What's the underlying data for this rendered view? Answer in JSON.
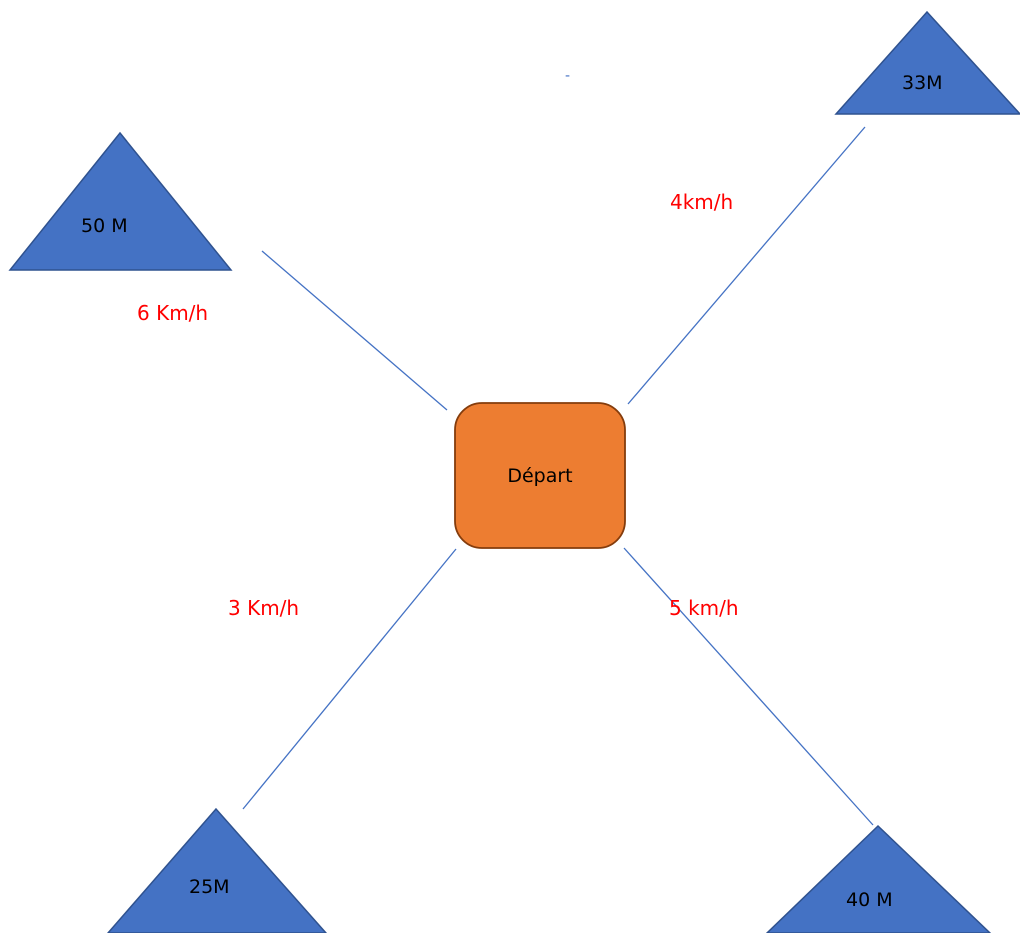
{
  "colors": {
    "triangle_fill": "#4472C4",
    "triangle_stroke": "#2F528F",
    "connector": "#4472C4",
    "start_fill": "#ED7D31",
    "start_stroke": "#843C0C",
    "speed_text": "#FF0000",
    "label_text": "#000000"
  },
  "start": {
    "label": "Départ"
  },
  "destinations": {
    "top_left": {
      "label": "50 M",
      "speed": "6 Km/h"
    },
    "top_right": {
      "label": "33M",
      "speed": "4km/h"
    },
    "bottom_left": {
      "label": "25M",
      "speed": "3 Km/h"
    },
    "bottom_right": {
      "label": "40 M",
      "speed": "5 km/h"
    }
  },
  "stray_mark": "-"
}
